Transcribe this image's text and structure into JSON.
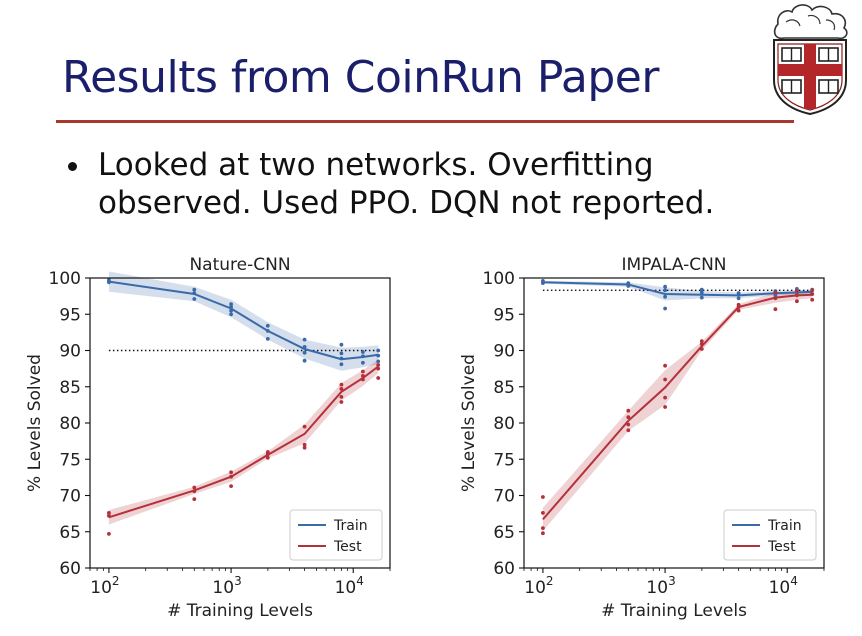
{
  "slide": {
    "title": "Results from CoinRun Paper",
    "bullets": [
      {
        "lines": [
          "Looked at two networks. Overfitting",
          "observed. Used PPO. DQN not reported."
        ]
      }
    ],
    "logo": "brown-university-shield-icon"
  },
  "colors": {
    "title": "#1b1f6b",
    "rule": "#a8372e",
    "train": "#3b6aa9",
    "test": "#b5313a"
  },
  "chart_data": [
    {
      "type": "line",
      "title": "Nature-CNN",
      "xlabel": "# Training Levels",
      "ylabel": "% Levels Solved",
      "xscale": "log",
      "xlim": [
        70,
        20000
      ],
      "ylim": [
        60,
        100
      ],
      "yticks": [
        60,
        65,
        70,
        75,
        80,
        85,
        90,
        95,
        100
      ],
      "xticks": [
        {
          "value": 100,
          "base": "10",
          "exp": "2"
        },
        {
          "value": 1000,
          "base": "10",
          "exp": "3"
        },
        {
          "value": 10000,
          "base": "10",
          "exp": "4"
        }
      ],
      "reference_line": {
        "y": 90,
        "style": "dotted",
        "x_range": [
          100,
          16000
        ]
      },
      "legend": "bottom-right",
      "x": [
        100,
        500,
        1000,
        2000,
        4000,
        8000,
        12000,
        16000
      ],
      "series": [
        {
          "name": "Train",
          "color": "#3b6aa9",
          "values": [
            99.5,
            97.8,
            95.8,
            92.7,
            90.2,
            88.8,
            89.1,
            89.4
          ],
          "band": [
            1.4,
            1.0,
            1.2,
            1.2,
            1.3,
            1.6,
            1.4,
            1.3
          ],
          "runs": [
            [
              99.4,
              99.7
            ],
            [
              97.1,
              97.9,
              98.4
            ],
            [
              95.0,
              95.5,
              96.0,
              96.4
            ],
            [
              91.6,
              92.7,
              93.4
            ],
            [
              88.6,
              89.7,
              90.5,
              91.5
            ],
            [
              88.1,
              88.9,
              89.6,
              90.8
            ],
            [
              88.3,
              89.2,
              89.8
            ],
            [
              88.5,
              89.3,
              90.0
            ]
          ]
        },
        {
          "name": "Test",
          "color": "#b5313a",
          "values": [
            67.0,
            70.7,
            72.6,
            75.6,
            78.5,
            84.3,
            86.2,
            87.8
          ],
          "band": [
            1.0,
            0.5,
            0.7,
            0.5,
            1.3,
            1.2,
            1.1,
            0.9
          ],
          "runs": [
            [
              64.7,
              67.2,
              67.6
            ],
            [
              69.5,
              70.6,
              71.1
            ],
            [
              71.3,
              72.6,
              73.2
            ],
            [
              75.2,
              75.7,
              76.0
            ],
            [
              76.6,
              77.0,
              79.5
            ],
            [
              82.9,
              83.6,
              84.7,
              85.3
            ],
            [
              86.0,
              86.5,
              87.1
            ],
            [
              86.2,
              87.5,
              88.0
            ]
          ]
        }
      ]
    },
    {
      "type": "line",
      "title": "IMPALA-CNN",
      "xlabel": "# Training Levels",
      "ylabel": "% Levels Solved",
      "xscale": "log",
      "xlim": [
        70,
        20000
      ],
      "ylim": [
        60,
        100
      ],
      "yticks": [
        60,
        65,
        70,
        75,
        80,
        85,
        90,
        95,
        100
      ],
      "xticks": [
        {
          "value": 100,
          "base": "10",
          "exp": "2"
        },
        {
          "value": 1000,
          "base": "10",
          "exp": "3"
        },
        {
          "value": 10000,
          "base": "10",
          "exp": "4"
        }
      ],
      "reference_line": {
        "y": 98.3,
        "style": "dotted",
        "x_range": [
          100,
          16000
        ]
      },
      "legend": "bottom-right",
      "x": [
        100,
        500,
        1000,
        2000,
        4000,
        8000,
        12000,
        16000
      ],
      "series": [
        {
          "name": "Train",
          "color": "#3b6aa9",
          "values": [
            99.4,
            99.1,
            97.8,
            97.7,
            97.6,
            97.9,
            98.0,
            98.1
          ],
          "band": [
            0.2,
            0.3,
            0.9,
            0.5,
            0.4,
            0.3,
            0.3,
            0.3
          ],
          "runs": [
            [
              99.3,
              99.6
            ],
            [
              98.9,
              99.3
            ],
            [
              95.8,
              97.4,
              98.3,
              98.8
            ],
            [
              97.3,
              98.0,
              98.4
            ],
            [
              97.2,
              97.9
            ],
            [
              97.6,
              98.2
            ],
            [
              97.7,
              98.3,
              98.5
            ],
            [
              97.8,
              98.4
            ]
          ]
        },
        {
          "name": "Test",
          "color": "#b5313a",
          "values": [
            66.7,
            80.3,
            84.9,
            90.6,
            96.0,
            97.3,
            97.6,
            97.7
          ],
          "band": [
            1.6,
            1.4,
            2.4,
            0.6,
            0.4,
            0.7,
            0.6,
            0.5
          ],
          "runs": [
            [
              64.8,
              65.5,
              67.6,
              69.8
            ],
            [
              79.0,
              79.8,
              80.8,
              81.7
            ],
            [
              82.2,
              83.5,
              86.0,
              87.9
            ],
            [
              90.2,
              90.9,
              91.3
            ],
            [
              95.5,
              96.0,
              96.3
            ],
            [
              95.7,
              97.2,
              98.0
            ],
            [
              96.8,
              97.6,
              98.2
            ],
            [
              97.0,
              97.8,
              98.3
            ]
          ]
        }
      ]
    }
  ]
}
